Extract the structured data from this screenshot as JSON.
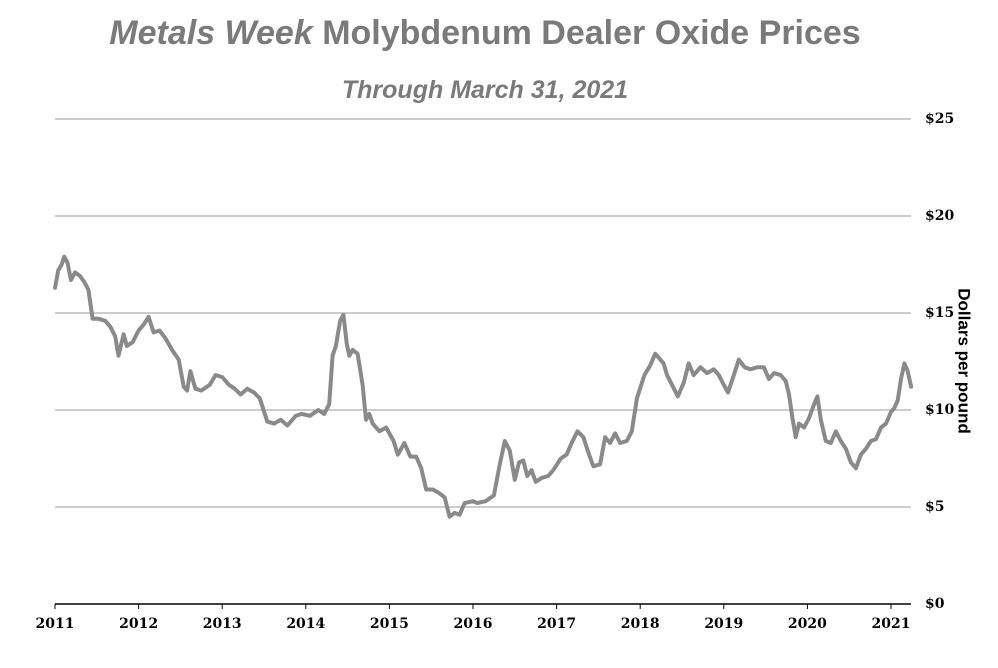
{
  "header": {
    "title_italic": "Metals Week",
    "title_rest": " Molybdenum Dealer Oxide Prices",
    "subtitle": "Through March 31, 2021"
  },
  "chart_data": {
    "type": "line",
    "title": "Metals Week Molybdenum Dealer Oxide Prices",
    "subtitle": "Through March 31, 2021",
    "ylabel": "Dollars per pound",
    "xlabel": "",
    "x_ticks": [
      "2011",
      "2012",
      "2013",
      "2014",
      "2015",
      "2016",
      "2017",
      "2018",
      "2019",
      "2020",
      "2021"
    ],
    "y_ticks": [
      "$0",
      "$5",
      "$10",
      "$15",
      "$20",
      "$25"
    ],
    "xlim": [
      2011.0,
      2021.25
    ],
    "ylim": [
      0,
      25
    ],
    "grid": true,
    "line_color": "#8a8a8a",
    "series": [
      {
        "values": [
          [
            2011.0,
            16.3
          ],
          [
            2011.04,
            17.2
          ],
          [
            2011.08,
            17.5
          ],
          [
            2011.11,
            17.9
          ],
          [
            2011.15,
            17.6
          ],
          [
            2011.19,
            16.7
          ],
          [
            2011.24,
            17.1
          ],
          [
            2011.3,
            16.9
          ],
          [
            2011.35,
            16.6
          ],
          [
            2011.4,
            16.2
          ],
          [
            2011.45,
            14.7
          ],
          [
            2011.52,
            14.7
          ],
          [
            2011.6,
            14.6
          ],
          [
            2011.66,
            14.3
          ],
          [
            2011.72,
            13.8
          ],
          [
            2011.76,
            12.8
          ],
          [
            2011.82,
            13.9
          ],
          [
            2011.86,
            13.3
          ],
          [
            2011.93,
            13.5
          ],
          [
            2012.0,
            14.1
          ],
          [
            2012.06,
            14.4
          ],
          [
            2012.12,
            14.8
          ],
          [
            2012.18,
            14.0
          ],
          [
            2012.25,
            14.1
          ],
          [
            2012.32,
            13.7
          ],
          [
            2012.4,
            13.1
          ],
          [
            2012.48,
            12.6
          ],
          [
            2012.54,
            11.2
          ],
          [
            2012.58,
            11.0
          ],
          [
            2012.62,
            12.0
          ],
          [
            2012.68,
            11.1
          ],
          [
            2012.75,
            11.0
          ],
          [
            2012.85,
            11.3
          ],
          [
            2012.92,
            11.8
          ],
          [
            2013.0,
            11.7
          ],
          [
            2013.08,
            11.3
          ],
          [
            2013.15,
            11.1
          ],
          [
            2013.22,
            10.8
          ],
          [
            2013.3,
            11.1
          ],
          [
            2013.38,
            10.9
          ],
          [
            2013.45,
            10.6
          ],
          [
            2013.54,
            9.4
          ],
          [
            2013.62,
            9.3
          ],
          [
            2013.7,
            9.5
          ],
          [
            2013.78,
            9.2
          ],
          [
            2013.88,
            9.7
          ],
          [
            2013.95,
            9.8
          ],
          [
            2014.05,
            9.7
          ],
          [
            2014.15,
            10.0
          ],
          [
            2014.22,
            9.8
          ],
          [
            2014.28,
            10.3
          ],
          [
            2014.32,
            12.8
          ],
          [
            2014.36,
            13.3
          ],
          [
            2014.41,
            14.6
          ],
          [
            2014.45,
            14.9
          ],
          [
            2014.49,
            13.4
          ],
          [
            2014.52,
            12.8
          ],
          [
            2014.56,
            13.1
          ],
          [
            2014.62,
            12.9
          ],
          [
            2014.68,
            11.3
          ],
          [
            2014.72,
            9.5
          ],
          [
            2014.76,
            9.8
          ],
          [
            2014.8,
            9.3
          ],
          [
            2014.88,
            8.9
          ],
          [
            2014.96,
            9.1
          ],
          [
            2015.05,
            8.4
          ],
          [
            2015.1,
            7.7
          ],
          [
            2015.18,
            8.3
          ],
          [
            2015.25,
            7.6
          ],
          [
            2015.32,
            7.6
          ],
          [
            2015.38,
            7.0
          ],
          [
            2015.44,
            5.9
          ],
          [
            2015.52,
            5.9
          ],
          [
            2015.6,
            5.7
          ],
          [
            2015.66,
            5.5
          ],
          [
            2015.72,
            4.5
          ],
          [
            2015.78,
            4.7
          ],
          [
            2015.84,
            4.6
          ],
          [
            2015.9,
            5.2
          ],
          [
            2016.0,
            5.3
          ],
          [
            2016.05,
            5.2
          ],
          [
            2016.15,
            5.3
          ],
          [
            2016.25,
            5.6
          ],
          [
            2016.32,
            7.2
          ],
          [
            2016.38,
            8.4
          ],
          [
            2016.44,
            7.9
          ],
          [
            2016.5,
            6.4
          ],
          [
            2016.55,
            7.3
          ],
          [
            2016.6,
            7.4
          ],
          [
            2016.65,
            6.6
          ],
          [
            2016.7,
            6.9
          ],
          [
            2016.75,
            6.3
          ],
          [
            2016.82,
            6.5
          ],
          [
            2016.9,
            6.6
          ],
          [
            2016.96,
            6.9
          ],
          [
            2017.05,
            7.5
          ],
          [
            2017.12,
            7.7
          ],
          [
            2017.18,
            8.3
          ],
          [
            2017.25,
            8.9
          ],
          [
            2017.32,
            8.6
          ],
          [
            2017.38,
            7.8
          ],
          [
            2017.44,
            7.1
          ],
          [
            2017.52,
            7.2
          ],
          [
            2017.58,
            8.6
          ],
          [
            2017.64,
            8.3
          ],
          [
            2017.7,
            8.8
          ],
          [
            2017.76,
            8.3
          ],
          [
            2017.84,
            8.4
          ],
          [
            2017.9,
            8.9
          ],
          [
            2017.96,
            10.6
          ],
          [
            2018.05,
            11.8
          ],
          [
            2018.12,
            12.3
          ],
          [
            2018.18,
            12.9
          ],
          [
            2018.22,
            12.7
          ],
          [
            2018.28,
            12.4
          ],
          [
            2018.32,
            11.8
          ],
          [
            2018.38,
            11.3
          ],
          [
            2018.45,
            10.7
          ],
          [
            2018.52,
            11.4
          ],
          [
            2018.58,
            12.4
          ],
          [
            2018.64,
            11.8
          ],
          [
            2018.72,
            12.2
          ],
          [
            2018.8,
            11.9
          ],
          [
            2018.88,
            12.1
          ],
          [
            2018.94,
            11.8
          ],
          [
            2019.0,
            11.3
          ],
          [
            2019.05,
            10.9
          ],
          [
            2019.12,
            11.8
          ],
          [
            2019.18,
            12.6
          ],
          [
            2019.25,
            12.2
          ],
          [
            2019.32,
            12.1
          ],
          [
            2019.4,
            12.2
          ],
          [
            2019.48,
            12.2
          ],
          [
            2019.54,
            11.6
          ],
          [
            2019.6,
            11.9
          ],
          [
            2019.68,
            11.8
          ],
          [
            2019.74,
            11.5
          ],
          [
            2019.78,
            10.8
          ],
          [
            2019.82,
            9.6
          ],
          [
            2019.86,
            8.6
          ],
          [
            2019.9,
            9.3
          ],
          [
            2019.96,
            9.1
          ],
          [
            2020.02,
            9.6
          ],
          [
            2020.08,
            10.3
          ],
          [
            2020.12,
            10.7
          ],
          [
            2020.16,
            9.5
          ],
          [
            2020.22,
            8.4
          ],
          [
            2020.28,
            8.3
          ],
          [
            2020.34,
            8.9
          ],
          [
            2020.4,
            8.4
          ],
          [
            2020.46,
            8.0
          ],
          [
            2020.52,
            7.3
          ],
          [
            2020.58,
            7.0
          ],
          [
            2020.64,
            7.7
          ],
          [
            2020.7,
            8.0
          ],
          [
            2020.76,
            8.4
          ],
          [
            2020.82,
            8.5
          ],
          [
            2020.88,
            9.1
          ],
          [
            2020.94,
            9.3
          ],
          [
            2021.0,
            9.9
          ],
          [
            2021.04,
            10.1
          ],
          [
            2021.08,
            10.5
          ],
          [
            2021.12,
            11.6
          ],
          [
            2021.16,
            12.4
          ],
          [
            2021.2,
            12.0
          ],
          [
            2021.24,
            11.2
          ]
        ]
      }
    ]
  }
}
